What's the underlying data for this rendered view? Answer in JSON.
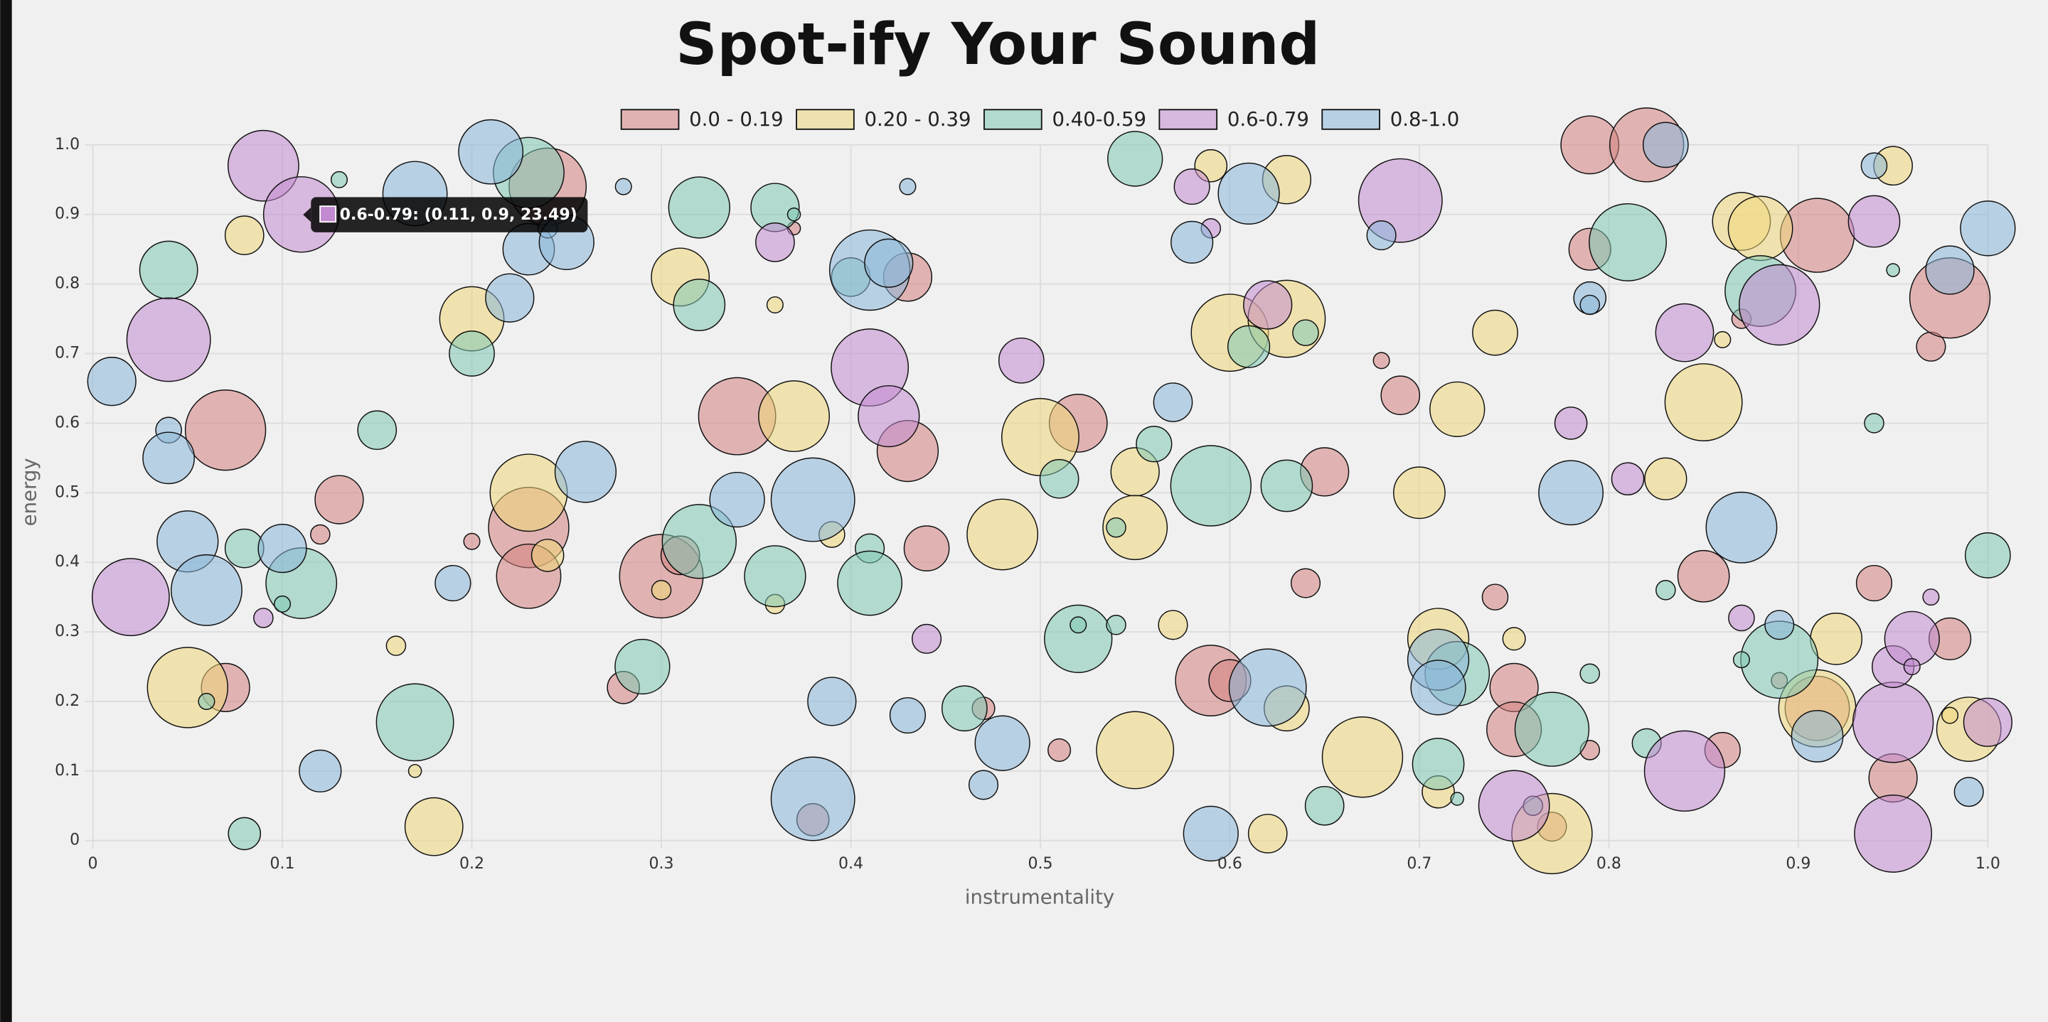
{
  "chart_data": {
    "type": "bubble",
    "title": "Spot-ify Your Sound",
    "x_label": "instrumentality",
    "y_label": "energy",
    "xlim": [
      0,
      1
    ],
    "ylim": [
      0,
      1
    ],
    "xticks": [
      0,
      0.1,
      0.2,
      0.3,
      0.4,
      0.5,
      0.6,
      0.7,
      0.8,
      0.9,
      {
        "value": 1,
        "label": "1.0"
      }
    ],
    "yticks": [
      0,
      0.1,
      0.2,
      0.3,
      0.4,
      0.5,
      0.6,
      0.7,
      0.8,
      0.9,
      {
        "value": 1,
        "label": "1.0"
      }
    ],
    "grid": true,
    "legend": "top",
    "tooltip": {
      "text": "0.6-0.79: (0.11, 0.9, 23.49)"
    },
    "series": [
      {
        "name": "0.0 - 0.19",
        "color": "#d4827f",
        "x": [
          0.07,
          0.13,
          0.12,
          0.07,
          0.24,
          0.23,
          0.23,
          0.2,
          0.3,
          0.31,
          0.28,
          0.34,
          0.37,
          0.43,
          0.43,
          0.44,
          0.47,
          0.51,
          0.52,
          0.65,
          0.64,
          0.59,
          0.6,
          0.69,
          0.68,
          0.74,
          0.75,
          0.75,
          0.77,
          0.79,
          0.79,
          0.82,
          0.79,
          0.85,
          0.86,
          0.87,
          0.89,
          0.91,
          0.91,
          0.94,
          0.95,
          0.97,
          0.98,
          0.98,
          0.38
        ],
        "values": [
          0.59,
          0.49,
          0.44,
          0.22,
          0.94,
          0.45,
          0.38,
          0.43,
          0.38,
          0.41,
          0.22,
          0.61,
          0.88,
          0.81,
          0.56,
          0.42,
          0.19,
          0.13,
          0.6,
          0.53,
          0.37,
          0.23,
          0.23,
          0.64,
          0.69,
          0.35,
          0.22,
          0.16,
          0.02,
          1.0,
          0.85,
          1.0,
          0.13,
          0.38,
          0.13,
          0.75,
          0.23,
          0.87,
          0.19,
          0.37,
          0.09,
          0.71,
          0.78,
          0.29,
          0.03
        ],
        "sizes": [
          25,
          15,
          6,
          15,
          24,
          25,
          20,
          5,
          26,
          12,
          10,
          24,
          4,
          15,
          19,
          14,
          7,
          7,
          18,
          15,
          9,
          22,
          13,
          12,
          5,
          8,
          15,
          17,
          9,
          18,
          13,
          23,
          6,
          16,
          11,
          6,
          5,
          23,
          20,
          11,
          15,
          9,
          25,
          13,
          10
        ]
      },
      {
        "name": "0.20 - 0.39",
        "color": "#f0d77a",
        "x": [
          0.08,
          0.2,
          0.05,
          0.16,
          0.17,
          0.18,
          0.23,
          0.24,
          0.31,
          0.3,
          0.36,
          0.37,
          0.36,
          0.39,
          0.48,
          0.5,
          0.55,
          0.55,
          0.55,
          0.57,
          0.59,
          0.63,
          0.6,
          0.63,
          0.63,
          0.62,
          0.67,
          0.7,
          0.72,
          0.74,
          0.71,
          0.71,
          0.75,
          0.77,
          0.83,
          0.85,
          0.87,
          0.88,
          0.86,
          0.92,
          0.91,
          0.95,
          0.99,
          0.98
        ],
        "values": [
          0.87,
          0.75,
          0.22,
          0.28,
          0.1,
          0.02,
          0.5,
          0.41,
          0.81,
          0.36,
          0.77,
          0.61,
          0.34,
          0.44,
          0.44,
          0.58,
          0.53,
          0.45,
          0.13,
          0.31,
          0.97,
          0.95,
          0.73,
          0.75,
          0.19,
          0.01,
          0.12,
          0.5,
          0.62,
          0.73,
          0.29,
          0.07,
          0.29,
          0.01,
          0.52,
          0.63,
          0.89,
          0.88,
          0.72,
          0.29,
          0.19,
          0.97,
          0.16,
          0.18
        ],
        "sizes": [
          12,
          20,
          25,
          6,
          4,
          18,
          24,
          10,
          18,
          6,
          5,
          22,
          6,
          8,
          22,
          24,
          15,
          20,
          24,
          9,
          10,
          15,
          24,
          24,
          14,
          12,
          25,
          16,
          17,
          14,
          19,
          10,
          7,
          25,
          13,
          24,
          18,
          20,
          5,
          16,
          24,
          12,
          20,
          5
        ]
      },
      {
        "name": "0.40-0.59",
        "color": "#7fc8b5",
        "x": [
          0.04,
          0.13,
          0.15,
          0.08,
          0.11,
          0.1,
          0.06,
          0.08,
          0.17,
          0.2,
          0.23,
          0.29,
          0.32,
          0.32,
          0.32,
          0.36,
          0.36,
          0.37,
          0.4,
          0.41,
          0.41,
          0.46,
          0.51,
          0.52,
          0.52,
          0.54,
          0.54,
          0.55,
          0.56,
          0.59,
          0.61,
          0.63,
          0.64,
          0.65,
          0.71,
          0.72,
          0.72,
          0.77,
          0.76,
          0.79,
          0.81,
          0.83,
          0.82,
          0.88,
          0.89,
          0.87,
          0.94,
          0.95,
          1.0
        ],
        "values": [
          0.82,
          0.95,
          0.59,
          0.42,
          0.37,
          0.34,
          0.2,
          0.01,
          0.17,
          0.7,
          0.96,
          0.25,
          0.91,
          0.77,
          0.43,
          0.38,
          0.91,
          0.9,
          0.81,
          0.42,
          0.37,
          0.19,
          0.52,
          0.29,
          0.31,
          0.31,
          0.45,
          0.98,
          0.57,
          0.51,
          0.71,
          0.51,
          0.73,
          0.05,
          0.11,
          0.06,
          0.24,
          0.16,
          0.05,
          0.24,
          0.86,
          0.36,
          0.14,
          0.79,
          0.26,
          0.26,
          0.6,
          0.82,
          0.41
        ],
        "sizes": [
          18,
          5,
          12,
          12,
          22,
          5,
          5,
          10,
          24,
          14,
          22,
          17,
          19,
          16,
          23,
          19,
          15,
          4,
          12,
          9,
          20,
          14,
          12,
          21,
          5,
          6,
          6,
          17,
          11,
          25,
          13,
          16,
          8,
          12,
          16,
          4,
          20,
          23,
          6,
          6,
          24,
          6,
          9,
          22,
          24,
          5,
          6,
          4,
          14
        ]
      },
      {
        "name": "0.6-0.79",
        "color": "#c28ad0",
        "x": [
          0.09,
          0.11,
          0.04,
          0.02,
          0.09,
          0.36,
          0.41,
          0.42,
          0.44,
          0.49,
          0.58,
          0.59,
          0.62,
          0.69,
          0.78,
          0.81,
          0.84,
          0.89,
          0.94,
          0.87,
          0.84,
          0.75,
          0.95,
          0.95,
          0.95,
          0.96,
          0.96,
          0.97,
          1.0
        ],
        "values": [
          0.97,
          0.9,
          0.72,
          0.35,
          0.32,
          0.86,
          0.68,
          0.61,
          0.29,
          0.69,
          0.94,
          0.88,
          0.77,
          0.92,
          0.6,
          0.52,
          0.73,
          0.77,
          0.89,
          0.32,
          0.1,
          0.05,
          0.17,
          0.01,
          0.25,
          0.29,
          0.25,
          0.35,
          0.17
        ],
        "sizes": [
          22,
          23.49,
          26,
          24,
          6,
          12,
          24,
          19,
          9,
          14,
          11,
          6,
          15,
          26,
          10,
          10,
          18,
          25,
          16,
          8,
          25,
          22,
          25,
          24,
          13,
          17,
          5,
          5,
          15
        ]
      },
      {
        "name": "0.8-1.0",
        "color": "#8ab7d8",
        "x": [
          0.01,
          0.04,
          0.04,
          0.05,
          0.06,
          0.1,
          0.12,
          0.17,
          0.21,
          0.22,
          0.23,
          0.24,
          0.25,
          0.19,
          0.26,
          0.28,
          0.34,
          0.38,
          0.38,
          0.39,
          0.41,
          0.42,
          0.43,
          0.43,
          0.47,
          0.48,
          0.57,
          0.58,
          0.61,
          0.62,
          0.59,
          0.68,
          0.71,
          0.71,
          0.78,
          0.79,
          0.79,
          0.83,
          0.87,
          0.89,
          0.91,
          0.94,
          0.99,
          1.0,
          0.98
        ],
        "values": [
          0.66,
          0.59,
          0.55,
          0.43,
          0.36,
          0.42,
          0.1,
          0.93,
          0.99,
          0.78,
          0.85,
          0.88,
          0.86,
          0.37,
          0.53,
          0.94,
          0.49,
          0.49,
          0.06,
          0.2,
          0.82,
          0.83,
          0.94,
          0.18,
          0.08,
          0.14,
          0.63,
          0.86,
          0.93,
          0.22,
          0.01,
          0.87,
          0.26,
          0.22,
          0.5,
          0.78,
          0.77,
          1.0,
          0.45,
          0.31,
          0.15,
          0.97,
          0.07,
          0.88,
          0.82
        ],
        "sizes": [
          15,
          8,
          16,
          19,
          22,
          15,
          13,
          20,
          20,
          15,
          16,
          6,
          17,
          11,
          19,
          5,
          17,
          26,
          26,
          15,
          25,
          15,
          5,
          11,
          9,
          17,
          12,
          13,
          19,
          24,
          17,
          9,
          19,
          17,
          20,
          10,
          6,
          14,
          22,
          9,
          16,
          8,
          9,
          17,
          15
        ]
      }
    ]
  }
}
